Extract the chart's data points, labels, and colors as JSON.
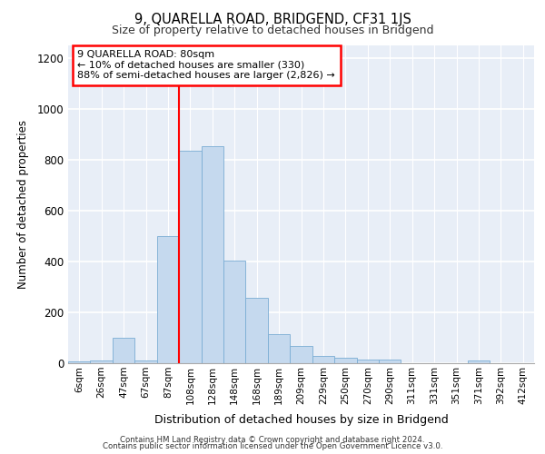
{
  "title1": "9, QUARELLA ROAD, BRIDGEND, CF31 1JS",
  "title2": "Size of property relative to detached houses in Bridgend",
  "xlabel": "Distribution of detached houses by size in Bridgend",
  "ylabel": "Number of detached properties",
  "categories": [
    "6sqm",
    "26sqm",
    "47sqm",
    "67sqm",
    "87sqm",
    "108sqm",
    "128sqm",
    "148sqm",
    "168sqm",
    "189sqm",
    "209sqm",
    "229sqm",
    "250sqm",
    "270sqm",
    "290sqm",
    "311sqm",
    "331sqm",
    "351sqm",
    "371sqm",
    "392sqm",
    "412sqm"
  ],
  "values": [
    8,
    10,
    100,
    10,
    500,
    835,
    855,
    403,
    258,
    115,
    68,
    30,
    20,
    13,
    13,
    0,
    0,
    0,
    10,
    0,
    0
  ],
  "bar_color": "#c5d9ee",
  "bar_edge_color": "#7aadd4",
  "vline_x_idx": 4,
  "vline_color": "red",
  "annotation_text": "9 QUARELLA ROAD: 80sqm\n← 10% of detached houses are smaller (330)\n88% of semi-detached houses are larger (2,826) →",
  "annotation_box_color": "white",
  "annotation_box_edge": "red",
  "ylim": [
    0,
    1250
  ],
  "yticks": [
    0,
    200,
    400,
    600,
    800,
    1000,
    1200
  ],
  "footer1": "Contains HM Land Registry data © Crown copyright and database right 2024.",
  "footer2": "Contains public sector information licensed under the Open Government Licence v3.0.",
  "bg_color": "#ffffff",
  "plot_bg_color": "#e8eef7",
  "grid_color": "#ffffff"
}
